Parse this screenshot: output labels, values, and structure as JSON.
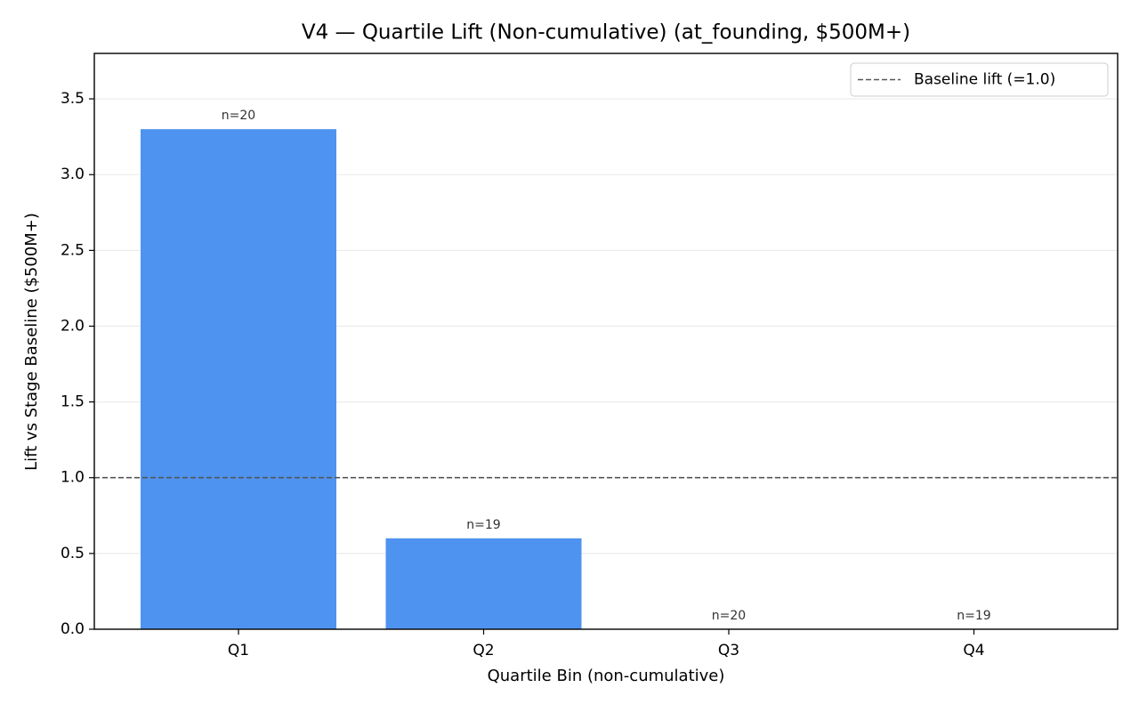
{
  "chart_data": {
    "type": "bar",
    "title": "V4 — Quartile Lift (Non-cumulative) (at_founding, $500M+)",
    "x_label": "Quartile Bin (non-cumulative)",
    "y_label": "Lift vs Stage Baseline ($500M+)",
    "categories": [
      "Q1",
      "Q2",
      "Q3",
      "Q4"
    ],
    "values": [
      3.3,
      0.6,
      0,
      0
    ],
    "bar_labels": [
      "n=20",
      "n=19",
      "n=20",
      "n=19"
    ],
    "color": "#4f93f0",
    "ylim": [
      0,
      3.8
    ],
    "yticks": [
      {
        "value": 0,
        "label": "0.0"
      },
      {
        "value": 0.5,
        "label": "0.5"
      },
      {
        "value": 1,
        "label": "1.0"
      },
      {
        "value": 1.5,
        "label": "1.5"
      },
      {
        "value": 2,
        "label": "2.0"
      },
      {
        "value": 2.5,
        "label": "2.5"
      },
      {
        "value": 3,
        "label": "3.0"
      },
      {
        "value": 3.5,
        "label": "3.5"
      }
    ],
    "grid": true,
    "reference_line": {
      "value": 1,
      "label": "Baseline lift (=1.0)",
      "color": "#555555"
    },
    "legend_position": "upper right"
  }
}
